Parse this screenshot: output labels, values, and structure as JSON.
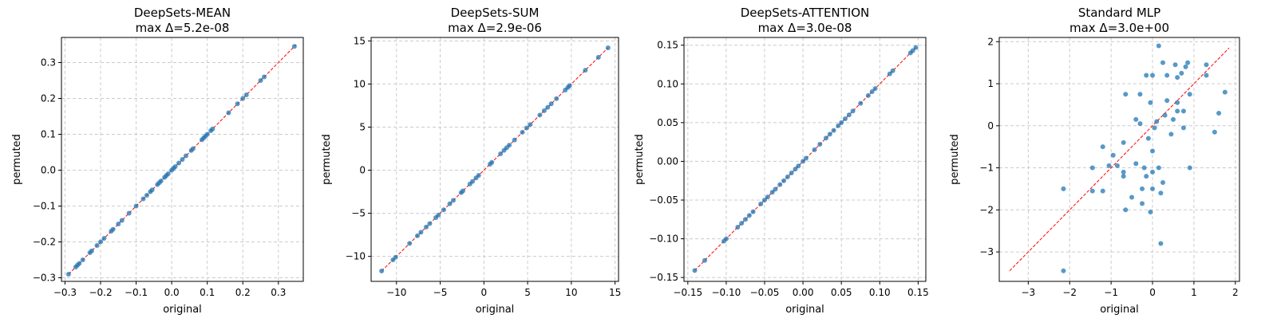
{
  "figure": {
    "background": "#ffffff"
  },
  "colors": {
    "points": "#1f77b4",
    "identity_line": "#ff0000",
    "grid": "#cccccc"
  },
  "chart_data": [
    {
      "type": "scatter",
      "title": "DeepSets-MEAN",
      "subtitle": "max Δ=5.2e-08",
      "xlabel": "original",
      "ylabel": "permuted",
      "xlim": [
        -0.31,
        0.37
      ],
      "ylim": [
        -0.31,
        0.37
      ],
      "xticks": [
        -0.3,
        -0.2,
        -0.1,
        0.0,
        0.1,
        0.2,
        0.3
      ],
      "yticks": [
        -0.3,
        -0.2,
        -0.1,
        0.0,
        0.1,
        0.2,
        0.3
      ],
      "xtick_labels": [
        "−0.3",
        "−0.2",
        "−0.1",
        "0.0",
        "0.1",
        "0.2",
        "0.3"
      ],
      "ytick_labels": [
        "−0.3",
        "−0.2",
        "−0.1",
        "0.0",
        "0.1",
        "0.2",
        "0.3"
      ],
      "grid": true,
      "identity_line": [
        -0.29,
        0.35
      ],
      "points": [
        [
          -0.29,
          -0.29
        ],
        [
          -0.27,
          -0.27
        ],
        [
          -0.265,
          -0.265
        ],
        [
          -0.26,
          -0.26
        ],
        [
          -0.25,
          -0.25
        ],
        [
          -0.23,
          -0.23
        ],
        [
          -0.225,
          -0.225
        ],
        [
          -0.21,
          -0.21
        ],
        [
          -0.2,
          -0.2
        ],
        [
          -0.19,
          -0.19
        ],
        [
          -0.17,
          -0.17
        ],
        [
          -0.165,
          -0.165
        ],
        [
          -0.15,
          -0.15
        ],
        [
          -0.14,
          -0.14
        ],
        [
          -0.12,
          -0.12
        ],
        [
          -0.1,
          -0.1
        ],
        [
          -0.08,
          -0.08
        ],
        [
          -0.07,
          -0.07
        ],
        [
          -0.06,
          -0.06
        ],
        [
          -0.055,
          -0.055
        ],
        [
          -0.04,
          -0.04
        ],
        [
          -0.035,
          -0.035
        ],
        [
          -0.03,
          -0.03
        ],
        [
          -0.02,
          -0.02
        ],
        [
          -0.015,
          -0.015
        ],
        [
          -0.01,
          -0.01
        ],
        [
          0.0,
          0.0
        ],
        [
          0.005,
          0.005
        ],
        [
          0.01,
          0.01
        ],
        [
          0.02,
          0.02
        ],
        [
          0.03,
          0.03
        ],
        [
          0.04,
          0.04
        ],
        [
          0.055,
          0.055
        ],
        [
          0.06,
          0.06
        ],
        [
          0.085,
          0.085
        ],
        [
          0.09,
          0.09
        ],
        [
          0.095,
          0.095
        ],
        [
          0.1,
          0.1
        ],
        [
          0.11,
          0.11
        ],
        [
          0.115,
          0.115
        ],
        [
          0.16,
          0.16
        ],
        [
          0.185,
          0.185
        ],
        [
          0.2,
          0.2
        ],
        [
          0.21,
          0.21
        ],
        [
          0.25,
          0.25
        ],
        [
          0.26,
          0.26
        ],
        [
          0.345,
          0.345
        ]
      ]
    },
    {
      "type": "scatter",
      "title": "DeepSets-SUM",
      "subtitle": "max Δ=2.9e-06",
      "xlabel": "original",
      "ylabel": "permuted",
      "xlim": [
        -12.9,
        15.4
      ],
      "ylim": [
        -12.9,
        15.4
      ],
      "xticks": [
        -10,
        -5,
        0,
        5,
        10,
        15
      ],
      "yticks": [
        -10,
        -5,
        0,
        5,
        10,
        15
      ],
      "xtick_labels": [
        "−10",
        "−5",
        "0",
        "5",
        "10",
        "15"
      ],
      "ytick_labels": [
        "−10",
        "−5",
        "0",
        "5",
        "10",
        "15"
      ],
      "grid": true,
      "identity_line": [
        -11.7,
        14.2
      ],
      "points": [
        [
          -11.7,
          -11.7
        ],
        [
          -10.4,
          -10.4
        ],
        [
          -10.1,
          -10.1
        ],
        [
          -8.5,
          -8.5
        ],
        [
          -7.6,
          -7.6
        ],
        [
          -7.2,
          -7.2
        ],
        [
          -6.6,
          -6.6
        ],
        [
          -6.2,
          -6.2
        ],
        [
          -5.5,
          -5.5
        ],
        [
          -5.2,
          -5.2
        ],
        [
          -4.6,
          -4.6
        ],
        [
          -3.9,
          -3.9
        ],
        [
          -3.5,
          -3.5
        ],
        [
          -2.6,
          -2.6
        ],
        [
          -2.4,
          -2.4
        ],
        [
          -1.6,
          -1.6
        ],
        [
          -1.3,
          -1.3
        ],
        [
          -0.9,
          -0.9
        ],
        [
          -0.6,
          -0.6
        ],
        [
          0.9,
          0.9
        ],
        [
          0.7,
          0.7
        ],
        [
          1.9,
          1.9
        ],
        [
          2.3,
          2.3
        ],
        [
          2.6,
          2.6
        ],
        [
          2.9,
          2.9
        ],
        [
          3.5,
          3.5
        ],
        [
          4.4,
          4.4
        ],
        [
          4.9,
          4.9
        ],
        [
          5.3,
          5.3
        ],
        [
          6.4,
          6.4
        ],
        [
          6.9,
          6.9
        ],
        [
          7.3,
          7.3
        ],
        [
          7.7,
          7.7
        ],
        [
          8.3,
          8.3
        ],
        [
          9.3,
          9.3
        ],
        [
          9.6,
          9.6
        ],
        [
          9.8,
          9.8
        ],
        [
          11.6,
          11.6
        ],
        [
          13.1,
          13.1
        ],
        [
          14.2,
          14.2
        ]
      ]
    },
    {
      "type": "scatter",
      "title": "DeepSets-ATTENTION",
      "subtitle": "max Δ=3.0e-08",
      "xlabel": "original",
      "ylabel": "permuted",
      "xlim": [
        -0.155,
        0.16
      ],
      "ylim": [
        -0.155,
        0.16
      ],
      "xticks": [
        -0.15,
        -0.1,
        -0.05,
        0.0,
        0.05,
        0.1,
        0.15
      ],
      "yticks": [
        -0.15,
        -0.1,
        -0.05,
        0.0,
        0.05,
        0.1,
        0.15
      ],
      "xtick_labels": [
        "−0.15",
        "−0.10",
        "−0.05",
        "0.00",
        "0.05",
        "0.10",
        "0.15"
      ],
      "ytick_labels": [
        "−0.15",
        "−0.10",
        "−0.05",
        "0.00",
        "0.05",
        "0.10",
        "0.15"
      ],
      "grid": true,
      "identity_line": [
        -0.141,
        0.147
      ],
      "points": [
        [
          -0.141,
          -0.141
        ],
        [
          -0.128,
          -0.128
        ],
        [
          -0.103,
          -0.103
        ],
        [
          -0.1,
          -0.1
        ],
        [
          -0.085,
          -0.085
        ],
        [
          -0.08,
          -0.08
        ],
        [
          -0.075,
          -0.075
        ],
        [
          -0.07,
          -0.07
        ],
        [
          -0.065,
          -0.065
        ],
        [
          -0.055,
          -0.055
        ],
        [
          -0.05,
          -0.05
        ],
        [
          -0.046,
          -0.046
        ],
        [
          -0.04,
          -0.04
        ],
        [
          -0.036,
          -0.036
        ],
        [
          -0.03,
          -0.03
        ],
        [
          -0.025,
          -0.025
        ],
        [
          -0.02,
          -0.02
        ],
        [
          -0.015,
          -0.015
        ],
        [
          -0.01,
          -0.01
        ],
        [
          -0.006,
          -0.006
        ],
        [
          0.0,
          0.0
        ],
        [
          0.004,
          0.004
        ],
        [
          0.015,
          0.015
        ],
        [
          0.022,
          0.022
        ],
        [
          0.03,
          0.03
        ],
        [
          0.035,
          0.035
        ],
        [
          0.04,
          0.04
        ],
        [
          0.046,
          0.046
        ],
        [
          0.05,
          0.05
        ],
        [
          0.055,
          0.055
        ],
        [
          0.06,
          0.06
        ],
        [
          0.065,
          0.065
        ],
        [
          0.075,
          0.075
        ],
        [
          0.085,
          0.085
        ],
        [
          0.09,
          0.09
        ],
        [
          0.094,
          0.094
        ],
        [
          0.113,
          0.113
        ],
        [
          0.117,
          0.117
        ],
        [
          0.14,
          0.14
        ],
        [
          0.143,
          0.143
        ],
        [
          0.147,
          0.147
        ]
      ]
    },
    {
      "type": "scatter",
      "title": "Standard MLP",
      "subtitle": "max Δ=3.0e+00",
      "xlabel": "original",
      "ylabel": "permuted",
      "xlim": [
        -3.7,
        2.1
      ],
      "ylim": [
        -3.7,
        2.1
      ],
      "xticks": [
        -3,
        -2,
        -1,
        0,
        1,
        2
      ],
      "yticks": [
        -3,
        -2,
        -1,
        0,
        1,
        2
      ],
      "xtick_labels": [
        "−3",
        "−2",
        "−1",
        "0",
        "1",
        "2"
      ],
      "ytick_labels": [
        "−3",
        "−2",
        "−1",
        "0",
        "1",
        "2"
      ],
      "grid": true,
      "identity_line": [
        -3.45,
        1.85
      ],
      "points": [
        [
          -2.15,
          -3.45
        ],
        [
          -2.15,
          -1.5
        ],
        [
          -1.45,
          -1.0
        ],
        [
          -1.45,
          -1.55
        ],
        [
          -1.2,
          -1.55
        ],
        [
          -1.2,
          -0.5
        ],
        [
          -1.05,
          -0.95
        ],
        [
          -0.95,
          -0.7
        ],
        [
          -0.85,
          -0.95
        ],
        [
          -0.7,
          -1.2
        ],
        [
          -0.7,
          -1.1
        ],
        [
          -0.7,
          -0.4
        ],
        [
          -0.65,
          0.75
        ],
        [
          -0.65,
          -2.0
        ],
        [
          -0.5,
          -1.7
        ],
        [
          -0.4,
          -0.9
        ],
        [
          -0.4,
          0.15
        ],
        [
          -0.3,
          0.75
        ],
        [
          -0.3,
          0.05
        ],
        [
          -0.25,
          -1.5
        ],
        [
          -0.25,
          -1.85
        ],
        [
          -0.2,
          -1.0
        ],
        [
          -0.15,
          -1.2
        ],
        [
          -0.15,
          1.2
        ],
        [
          -0.1,
          -0.3
        ],
        [
          -0.05,
          0.55
        ],
        [
          0.0,
          1.2
        ],
        [
          0.0,
          -0.6
        ],
        [
          -0.05,
          -2.05
        ],
        [
          0.0,
          -1.5
        ],
        [
          0.0,
          -1.1
        ],
        [
          0.05,
          -0.05
        ],
        [
          0.1,
          0.1
        ],
        [
          0.15,
          1.9
        ],
        [
          0.15,
          -1.0
        ],
        [
          0.2,
          -1.6
        ],
        [
          0.2,
          -2.8
        ],
        [
          0.25,
          -1.35
        ],
        [
          0.25,
          1.5
        ],
        [
          0.3,
          0.25
        ],
        [
          0.35,
          0.6
        ],
        [
          0.35,
          1.2
        ],
        [
          0.45,
          -0.2
        ],
        [
          0.5,
          0.15
        ],
        [
          0.55,
          1.45
        ],
        [
          0.6,
          0.35
        ],
        [
          0.6,
          1.15
        ],
        [
          0.6,
          0.55
        ],
        [
          0.7,
          1.25
        ],
        [
          0.75,
          0.35
        ],
        [
          0.75,
          -0.05
        ],
        [
          0.8,
          1.4
        ],
        [
          0.85,
          1.5
        ],
        [
          0.9,
          0.75
        ],
        [
          0.9,
          -1.0
        ],
        [
          1.3,
          1.45
        ],
        [
          1.3,
          1.2
        ],
        [
          1.5,
          -0.15
        ],
        [
          1.6,
          0.3
        ],
        [
          1.75,
          0.8
        ]
      ]
    }
  ]
}
